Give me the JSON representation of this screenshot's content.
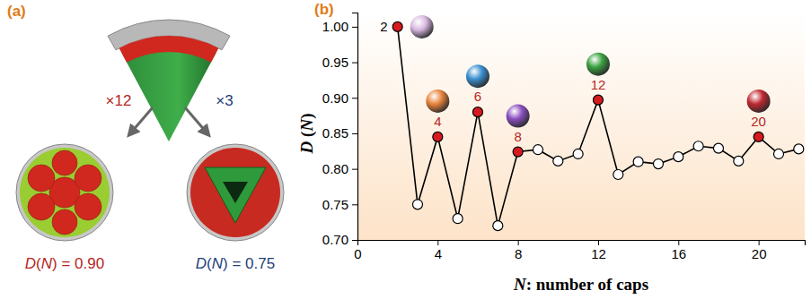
{
  "chart_data": {
    "type": "line",
    "panel_label": "(b)",
    "x_label": "N: number of caps",
    "y_label": "D (N)",
    "x": [
      2,
      3,
      4,
      5,
      6,
      7,
      8,
      9,
      10,
      11,
      12,
      13,
      14,
      15,
      16,
      17,
      18,
      19,
      20,
      21,
      22
    ],
    "values": [
      1.0,
      0.75,
      0.845,
      0.73,
      0.88,
      0.72,
      0.824,
      0.827,
      0.811,
      0.821,
      0.897,
      0.792,
      0.81,
      0.807,
      0.817,
      0.832,
      0.829,
      0.811,
      0.845,
      0.821,
      0.828
    ],
    "color": "#000000",
    "colors": [
      "#d71920",
      "#ffffff",
      "#d71920",
      "#ffffff",
      "#d71920",
      "#ffffff",
      "#d71920",
      "#ffffff",
      "#ffffff",
      "#ffffff",
      "#d71920",
      "#ffffff",
      "#ffffff",
      "#ffffff",
      "#ffffff",
      "#ffffff",
      "#ffffff",
      "#ffffff",
      "#d71920",
      "#ffffff",
      "#ffffff"
    ],
    "marker": "circle",
    "xlim": [
      0,
      22.3
    ],
    "ylim": [
      0.7,
      1.02
    ],
    "xticks": [
      0,
      4,
      8,
      12,
      16,
      20
    ],
    "yticks": [
      {
        "value": 0.7,
        "label": "0.70"
      },
      0.75,
      {
        "value": 0.8,
        "label": "0.80"
      },
      0.85,
      {
        "value": 0.9,
        "label": "0.90"
      },
      0.95,
      {
        "value": 1,
        "label": "1.00"
      }
    ],
    "grid": false,
    "annotations": [
      {
        "text": "2",
        "x": 2,
        "y": 1.0,
        "color": "#000000"
      },
      {
        "text": "4",
        "x": 4,
        "y": 0.845,
        "color": "#b5261e"
      },
      {
        "text": "6",
        "x": 6,
        "y": 0.88,
        "color": "#b5261e"
      },
      {
        "text": "8",
        "x": 8,
        "y": 0.824,
        "color": "#b5261e"
      },
      {
        "text": "12",
        "x": 12,
        "y": 0.897,
        "color": "#b5261e"
      },
      {
        "text": "20",
        "x": 20,
        "y": 0.845,
        "color": "#b5261e"
      }
    ]
  },
  "panel_a": {
    "panel_label": "(a)",
    "left": {
      "count": "×12",
      "caption": "D(N) = 0.90"
    },
    "right": {
      "count": "×3",
      "caption": "D(N) = 0.75"
    }
  }
}
